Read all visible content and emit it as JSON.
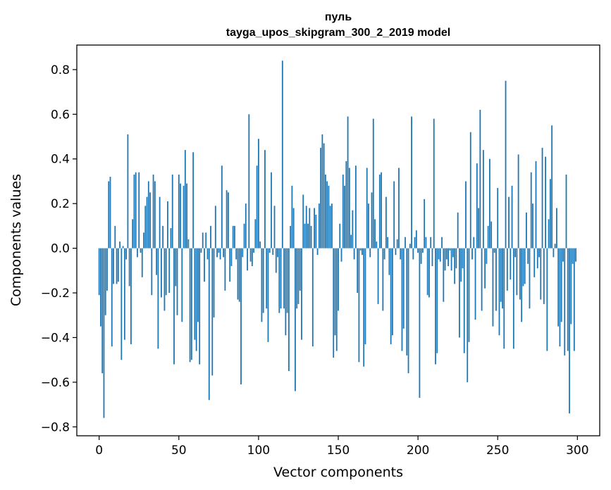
{
  "chart_data": {
    "type": "bar",
    "title": "пуль",
    "subtitle": "tayga_upos_skipgram_300_2_2019 model",
    "xlabel": "Vector components",
    "ylabel": "Components values",
    "xlim": [
      -14,
      314
    ],
    "ylim": [
      -0.84,
      0.91
    ],
    "xticks": [
      0,
      50,
      100,
      150,
      200,
      250,
      300
    ],
    "xtick_labels": [
      "0",
      "50",
      "100",
      "150",
      "200",
      "250",
      "300"
    ],
    "yticks": [
      -0.8,
      -0.6,
      -0.4,
      -0.2,
      0.0,
      0.2,
      0.4,
      0.6,
      0.8
    ],
    "ytick_labels": [
      "−0.8",
      "−0.6",
      "−0.4",
      "−0.2",
      "0.0",
      "0.2",
      "0.4",
      "0.6",
      "0.8"
    ],
    "grid": false,
    "bar_color": "#1f77b4",
    "x": [
      0,
      1,
      2,
      3,
      4,
      5,
      6,
      7,
      8,
      9,
      10,
      11,
      12,
      13,
      14,
      15,
      16,
      17,
      18,
      19,
      20,
      21,
      22,
      23,
      24,
      25,
      26,
      27,
      28,
      29,
      30,
      31,
      32,
      33,
      34,
      35,
      36,
      37,
      38,
      39,
      40,
      41,
      42,
      43,
      44,
      45,
      46,
      47,
      48,
      49,
      50,
      51,
      52,
      53,
      54,
      55,
      56,
      57,
      58,
      59,
      60,
      61,
      62,
      63,
      64,
      65,
      66,
      67,
      68,
      69,
      70,
      71,
      72,
      73,
      74,
      75,
      76,
      77,
      78,
      79,
      80,
      81,
      82,
      83,
      84,
      85,
      86,
      87,
      88,
      89,
      90,
      91,
      92,
      93,
      94,
      95,
      96,
      97,
      98,
      99,
      100,
      101,
      102,
      103,
      104,
      105,
      106,
      107,
      108,
      109,
      110,
      111,
      112,
      113,
      114,
      115,
      116,
      117,
      118,
      119,
      120,
      121,
      122,
      123,
      124,
      125,
      126,
      127,
      128,
      129,
      130,
      131,
      132,
      133,
      134,
      135,
      136,
      137,
      138,
      139,
      140,
      141,
      142,
      143,
      144,
      145,
      146,
      147,
      148,
      149,
      150,
      151,
      152,
      153,
      154,
      155,
      156,
      157,
      158,
      159,
      160,
      161,
      162,
      163,
      164,
      165,
      166,
      167,
      168,
      169,
      170,
      171,
      172,
      173,
      174,
      175,
      176,
      177,
      178,
      179,
      180,
      181,
      182,
      183,
      184,
      185,
      186,
      187,
      188,
      189,
      190,
      191,
      192,
      193,
      194,
      195,
      196,
      197,
      198,
      199,
      200,
      201,
      202,
      203,
      204,
      205,
      206,
      207,
      208,
      209,
      210,
      211,
      212,
      213,
      214,
      215,
      216,
      217,
      218,
      219,
      220,
      221,
      222,
      223,
      224,
      225,
      226,
      227,
      228,
      229,
      230,
      231,
      232,
      233,
      234,
      235,
      236,
      237,
      238,
      239,
      240,
      241,
      242,
      243,
      244,
      245,
      246,
      247,
      248,
      249,
      250,
      251,
      252,
      253,
      254,
      255,
      256,
      257,
      258,
      259,
      260,
      261,
      262,
      263,
      264,
      265,
      266,
      267,
      268,
      269,
      270,
      271,
      272,
      273,
      274,
      275,
      276,
      277,
      278,
      279,
      280,
      281,
      282,
      283,
      284,
      285,
      286,
      287,
      288,
      289,
      290,
      291,
      292,
      293,
      294,
      295,
      296,
      297,
      298,
      299
    ],
    "values": [
      -0.21,
      -0.35,
      -0.56,
      -0.76,
      -0.3,
      -0.19,
      0.3,
      0.32,
      -0.44,
      -0.16,
      0.1,
      -0.16,
      -0.15,
      0.03,
      -0.5,
      0.01,
      -0.41,
      -0.05,
      0.51,
      -0.17,
      -0.43,
      0.13,
      0.33,
      0.34,
      -0.04,
      0.34,
      -0.02,
      -0.13,
      0.07,
      0.19,
      0.23,
      0.3,
      0.25,
      -0.21,
      0.33,
      0.3,
      -0.12,
      -0.45,
      0.23,
      -0.22,
      0.1,
      -0.28,
      -0.21,
      0.21,
      -0.2,
      0.09,
      0.33,
      -0.52,
      -0.17,
      -0.3,
      0.33,
      0.29,
      -0.33,
      0.28,
      0.44,
      0.29,
      0.04,
      -0.51,
      -0.5,
      0.43,
      -0.41,
      -0.46,
      -0.33,
      -0.52,
      -0.02,
      0.07,
      -0.15,
      0.07,
      -0.05,
      -0.68,
      0.1,
      -0.57,
      -0.31,
      0.19,
      -0.04,
      -0.02,
      -0.05,
      0.37,
      -0.04,
      -0.19,
      0.26,
      0.25,
      -0.15,
      -0.08,
      0.1,
      0.1,
      -0.05,
      -0.23,
      -0.24,
      -0.61,
      -0.04,
      0.11,
      0.2,
      -0.1,
      0.6,
      -0.06,
      -0.08,
      -0.02,
      0.13,
      0.37,
      0.49,
      0.03,
      -0.33,
      -0.29,
      0.44,
      -0.27,
      -0.42,
      -0.02,
      0.34,
      -0.03,
      0.19,
      -0.11,
      -0.04,
      -0.29,
      -0.27,
      0.84,
      -0.27,
      -0.39,
      -0.29,
      -0.55,
      0.1,
      0.28,
      0.18,
      -0.64,
      -0.27,
      -0.25,
      -0.19,
      -0.41,
      0.24,
      0.11,
      0.19,
      0.11,
      0.18,
      0.1,
      -0.44,
      0.18,
      0.15,
      -0.03,
      0.2,
      0.45,
      0.51,
      0.47,
      0.33,
      0.3,
      0.28,
      0.19,
      0.2,
      -0.49,
      -0.39,
      -0.46,
      -0.28,
      0.11,
      -0.06,
      0.33,
      0.28,
      0.39,
      0.59,
      0.36,
      0.06,
      0.17,
      -0.05,
      0.37,
      -0.2,
      -0.51,
      -0.01,
      -0.03,
      -0.53,
      -0.43,
      0.36,
      0.2,
      -0.04,
      0.25,
      0.58,
      0.13,
      0.03,
      -0.25,
      0.33,
      0.34,
      -0.28,
      -0.05,
      0.23,
      0.05,
      -0.12,
      -0.43,
      -0.39,
      0.3,
      -0.03,
      0.04,
      0.36,
      -0.05,
      -0.46,
      -0.36,
      0.05,
      -0.48,
      -0.56,
      0.02,
      0.59,
      -0.05,
      0.05,
      0.08,
      -0.02,
      -0.67,
      -0.07,
      -0.02,
      0.22,
      0.05,
      -0.21,
      -0.22,
      0.05,
      -0.08,
      0.58,
      -0.52,
      -0.47,
      -0.05,
      -0.06,
      0.05,
      -0.24,
      -0.1,
      -0.05,
      -0.08,
      -0.01,
      -0.1,
      -0.04,
      -0.16,
      -0.09,
      0.16,
      -0.4,
      -0.15,
      -0.09,
      -0.47,
      0.3,
      -0.6,
      -0.42,
      0.52,
      -0.05,
      0.05,
      -0.32,
      0.38,
      0.18,
      0.62,
      -0.28,
      0.44,
      -0.18,
      -0.07,
      0.1,
      0.4,
      0.12,
      -0.35,
      -0.02,
      -0.28,
      0.27,
      -0.39,
      -0.24,
      -0.27,
      -0.45,
      0.75,
      -0.19,
      0.23,
      -0.14,
      0.28,
      -0.45,
      -0.04,
      -0.21,
      0.42,
      -0.23,
      -0.33,
      -0.17,
      -0.16,
      0.16,
      -0.07,
      -0.27,
      0.34,
      0.2,
      -0.13,
      0.39,
      -0.09,
      -0.04,
      -0.23,
      0.45,
      -0.25,
      0.41,
      -0.46,
      0.13,
      0.31,
      0.55,
      -0.04,
      0.02,
      0.18,
      -0.35,
      -0.44,
      -0.33,
      -0.06,
      -0.48,
      0.33,
      -0.46,
      -0.74,
      -0.34,
      -0.07,
      -0.46,
      -0.06
    ]
  }
}
